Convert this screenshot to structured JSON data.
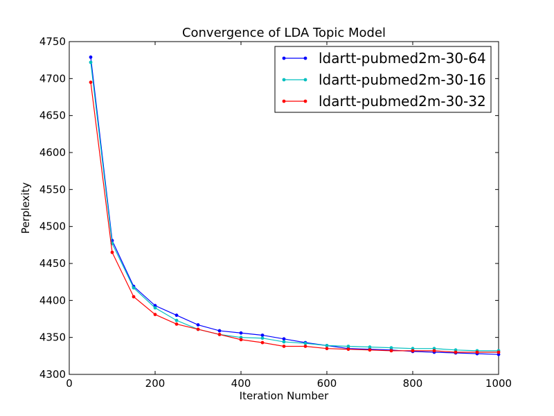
{
  "chart_data": {
    "type": "line",
    "title": "Convergence of LDA Topic Model",
    "xlabel": "Iteration Number",
    "ylabel": "Perplexity",
    "xlim": [
      0,
      1000
    ],
    "ylim": [
      4300,
      4750
    ],
    "xticks": [
      0,
      200,
      400,
      600,
      800,
      1000
    ],
    "yticks": [
      4300,
      4350,
      4400,
      4450,
      4500,
      4550,
      4600,
      4650,
      4700,
      4750
    ],
    "grid": false,
    "legend_position": "top-right",
    "x": [
      50,
      100,
      150,
      200,
      250,
      300,
      350,
      400,
      450,
      500,
      550,
      600,
      650,
      700,
      750,
      800,
      850,
      900,
      950,
      1000
    ],
    "series": [
      {
        "name": "ldartt-pubmed2m-30-64",
        "color": "#0000ff",
        "values": [
          4729,
          4481,
          4419,
          4393,
          4380,
          4367,
          4359,
          4356,
          4353,
          4348,
          4343,
          4339,
          4335,
          4334,
          4333,
          4331,
          4330,
          4329,
          4328,
          4327
        ]
      },
      {
        "name": "ldartt-pubmed2m-30-16",
        "color": "#00bfbf",
        "values": [
          4722,
          4477,
          4417,
          4390,
          4373,
          4361,
          4354,
          4350,
          4349,
          4344,
          4342,
          4339,
          4338,
          4337,
          4336,
          4335,
          4335,
          4333,
          4332,
          4332
        ]
      },
      {
        "name": "ldartt-pubmed2m-30-32",
        "color": "#ff0000",
        "values": [
          4695,
          4465,
          4405,
          4381,
          4368,
          4361,
          4354,
          4347,
          4343,
          4338,
          4338,
          4335,
          4334,
          4333,
          4332,
          4332,
          4332,
          4330,
          4330,
          4330
        ]
      }
    ]
  }
}
